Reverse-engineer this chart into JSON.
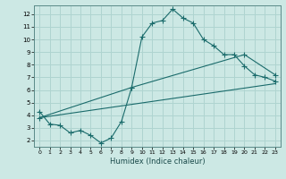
{
  "xlabel": "Humidex (Indice chaleur)",
  "ylabel": "",
  "bg_color": "#cce8e4",
  "grid_color": "#afd4d0",
  "line_color": "#1a6b6b",
  "xlim": [
    -0.5,
    23.5
  ],
  "ylim": [
    1.5,
    12.7
  ],
  "yticks": [
    2,
    3,
    4,
    5,
    6,
    7,
    8,
    9,
    10,
    11,
    12
  ],
  "xticks": [
    0,
    1,
    2,
    3,
    4,
    5,
    6,
    7,
    8,
    9,
    10,
    11,
    12,
    13,
    14,
    15,
    16,
    17,
    18,
    19,
    20,
    21,
    22,
    23
  ],
  "line1_x": [
    0,
    1,
    2,
    3,
    4,
    5,
    6,
    7,
    8,
    9,
    10,
    11,
    12,
    13,
    14,
    15,
    16,
    17,
    18,
    19,
    20,
    21,
    22,
    23
  ],
  "line1_y": [
    4.3,
    3.3,
    3.2,
    2.6,
    2.8,
    2.4,
    1.8,
    2.2,
    3.5,
    6.2,
    10.2,
    11.3,
    11.5,
    12.4,
    11.7,
    11.3,
    10.0,
    9.5,
    8.8,
    8.8,
    7.9,
    7.2,
    7.0,
    6.7
  ],
  "line2_x": [
    0,
    23
  ],
  "line2_y": [
    3.8,
    6.5
  ],
  "line3_x": [
    0,
    9,
    20,
    23
  ],
  "line3_y": [
    3.8,
    6.2,
    8.8,
    7.2
  ]
}
